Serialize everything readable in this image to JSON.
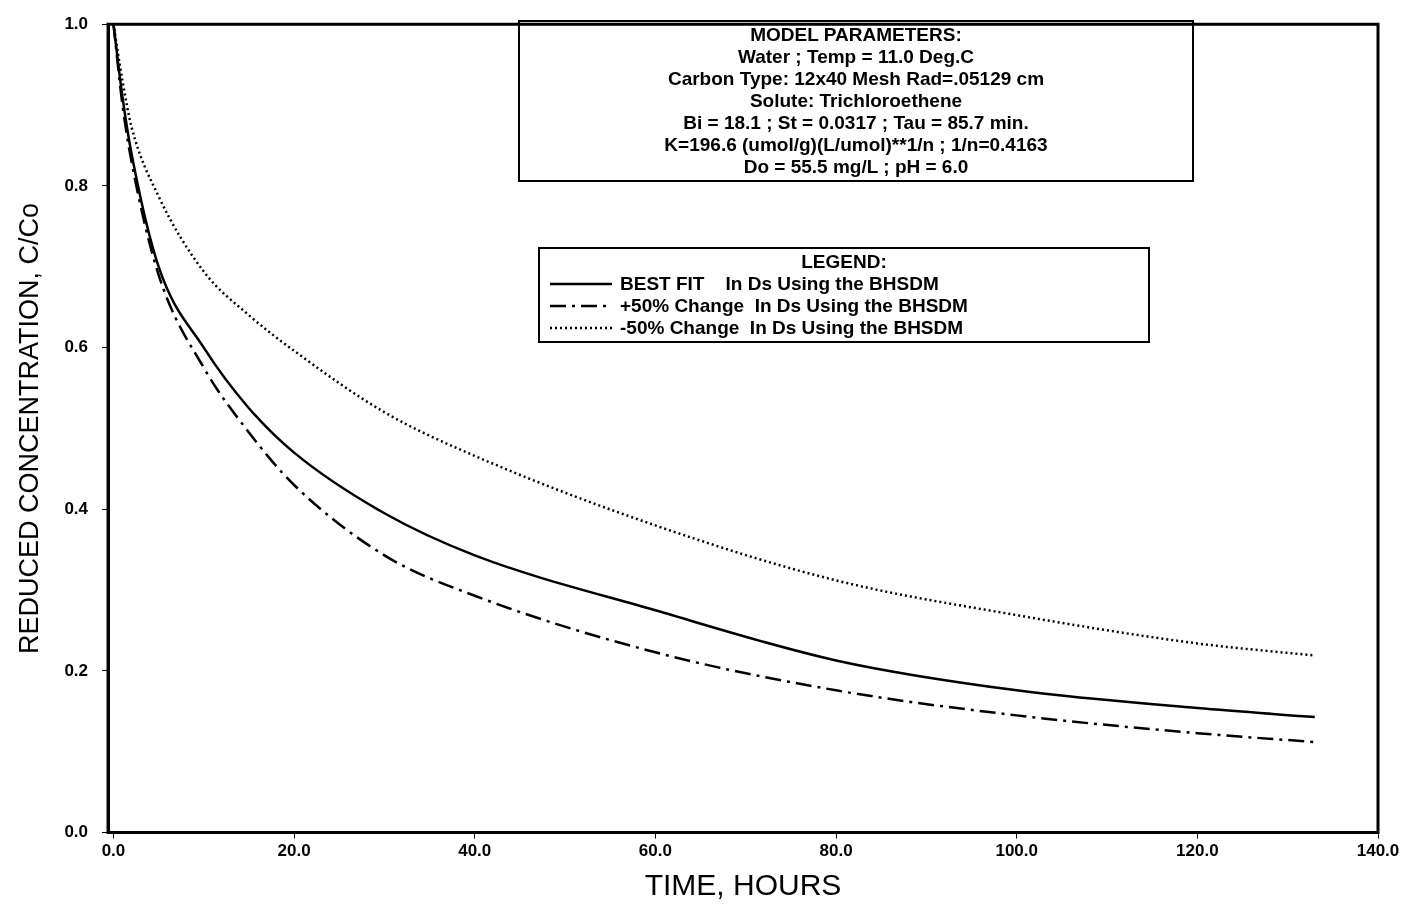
{
  "chart_data": {
    "type": "line",
    "xlabel": "TIME, HOURS",
    "ylabel": "REDUCED CONCENTRATION, C/Co",
    "legend_title": "LEGEND:",
    "legend": "top right",
    "grid": false,
    "marker": "none",
    "xlim": [
      -0.6,
      140
    ],
    "ylim": [
      0,
      1
    ],
    "xticks": [
      {
        "value": 0,
        "label": "0.0"
      },
      {
        "value": 20,
        "label": "20.0"
      },
      {
        "value": 40,
        "label": "40.0"
      },
      {
        "value": 60,
        "label": "60.0"
      },
      {
        "value": 80,
        "label": "80.0"
      },
      {
        "value": 100,
        "label": "100.0"
      },
      {
        "value": 120,
        "label": "120.0"
      },
      {
        "value": 140,
        "label": "140.0"
      }
    ],
    "yticks": [
      {
        "value": 0,
        "label": "0.0"
      },
      {
        "value": 0.2,
        "label": "0.2"
      },
      {
        "value": 0.4,
        "label": "0.4"
      },
      {
        "value": 0.6,
        "label": "0.6"
      },
      {
        "value": 0.8,
        "label": "0.8"
      },
      {
        "value": 1,
        "label": "1.0"
      }
    ],
    "x": [
      0,
      1,
      2,
      5,
      10,
      15,
      20,
      30,
      40,
      60,
      80,
      100,
      120,
      133
    ],
    "series": [
      {
        "name": "BEST FIT    In Ds Using the BHSDM",
        "color": "#000000",
        "line_style": "solid",
        "values": [
          1,
          0.91,
          0.84,
          0.7,
          0.6,
          0.525,
          0.47,
          0.395,
          0.343,
          0.275,
          0.213,
          0.176,
          0.154,
          0.143
        ]
      },
      {
        "name": "+50% Change  In Ds Using the BHSDM",
        "color": "#000000",
        "line_style": "dashdot",
        "values": [
          1,
          0.9,
          0.83,
          0.69,
          0.575,
          0.495,
          0.43,
          0.343,
          0.293,
          0.223,
          0.176,
          0.145,
          0.123,
          0.112
        ]
      },
      {
        "name": "-50% Change  In Ds Using the BHSDM",
        "color": "#000000",
        "line_style": "dotted",
        "values": [
          1,
          0.93,
          0.873,
          0.787,
          0.694,
          0.64,
          0.596,
          0.52,
          0.466,
          0.38,
          0.312,
          0.269,
          0.234,
          0.219
        ]
      }
    ],
    "annotations": [
      "MODEL PARAMETERS:",
      "Water ; Temp = 11.0 Deg.C",
      "Carbon Type: 12x40 Mesh  Rad=.05129 cm",
      "Solute: Trichloroethene",
      "Bi = 18.1 ; St = 0.0317 ; Tau = 85.7 min.",
      "K=196.6 (umol/g)(L/umol)**1/n ; 1/n=0.4163",
      "Do = 55.5 mg/L ; pH = 6.0"
    ]
  }
}
